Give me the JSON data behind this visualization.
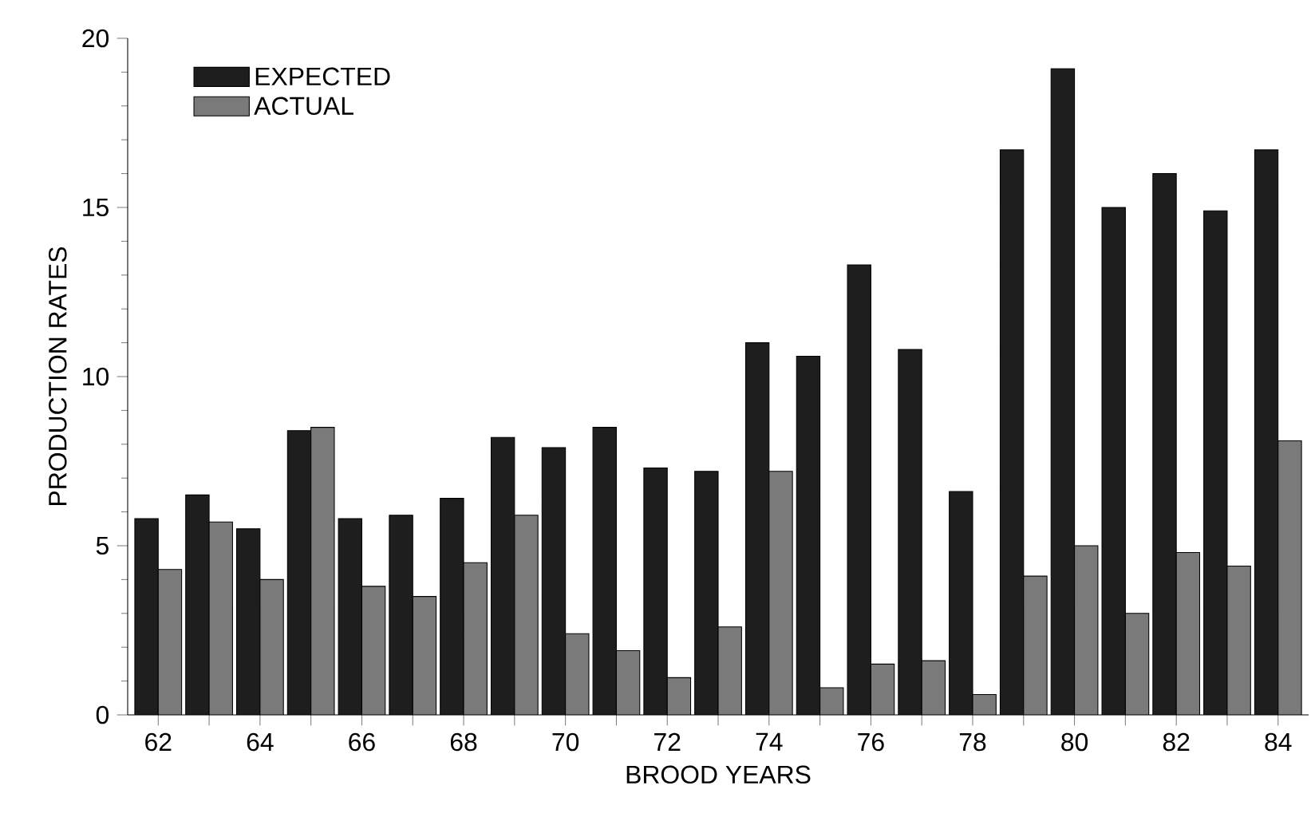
{
  "chart_data": {
    "type": "bar",
    "xlabel": "BROOD YEARS",
    "ylabel": "PRODUCTION RATES",
    "categories": [
      "62",
      null,
      "64",
      null,
      "66",
      null,
      "68",
      null,
      "70",
      null,
      "72",
      null,
      "74",
      null,
      "76",
      null,
      "78",
      null,
      "80",
      null,
      "82",
      null,
      "84"
    ],
    "series": [
      {
        "name": "EXPECTED",
        "color": "#1e1e1e",
        "values": [
          5.8,
          6.5,
          5.5,
          8.4,
          5.8,
          5.9,
          6.4,
          8.2,
          7.9,
          8.5,
          7.3,
          7.2,
          11.0,
          10.6,
          13.3,
          10.8,
          6.6,
          16.7,
          19.1,
          15.0,
          16.0,
          14.9,
          16.7
        ]
      },
      {
        "name": "ACTUAL",
        "color": "#7a7a7a",
        "values": [
          4.3,
          5.7,
          4.0,
          8.5,
          3.8,
          3.5,
          4.5,
          5.9,
          2.4,
          1.9,
          1.1,
          2.6,
          7.2,
          0.8,
          1.5,
          1.6,
          0.6,
          4.1,
          5.0,
          3.0,
          4.8,
          4.4,
          8.1
        ]
      }
    ],
    "ylim": [
      0,
      20
    ],
    "yticks": [
      0,
      5,
      10,
      15,
      20
    ],
    "grid": false,
    "legend": "top left"
  }
}
